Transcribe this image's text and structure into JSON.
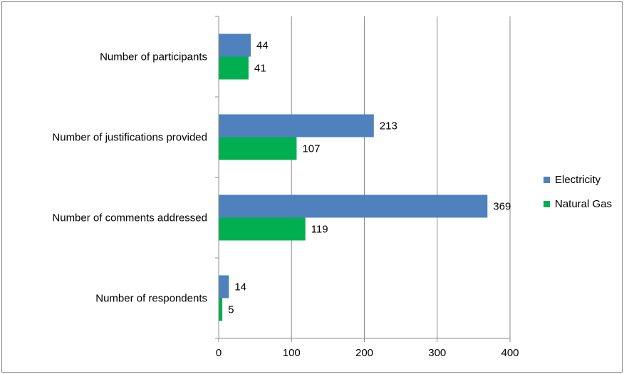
{
  "chart_data": {
    "type": "bar",
    "orientation": "horizontal",
    "categories": [
      "Number of participants",
      "Number of justifications provided",
      "Number of  comments addressed",
      "Number of  respondents"
    ],
    "series": [
      {
        "name": "Electricity",
        "values": [
          44,
          213,
          369,
          14
        ],
        "color": "#4f81bd"
      },
      {
        "name": "Natural Gas",
        "values": [
          41,
          107,
          119,
          5
        ],
        "color": "#00b050"
      }
    ],
    "xlim": [
      0,
      400
    ],
    "x_ticks": [
      "0",
      "100",
      "200",
      "300",
      "400"
    ],
    "x_tick_values": [
      0,
      100,
      200,
      300,
      400
    ],
    "grid": "vertical",
    "legend": "right",
    "data_labels": true,
    "title": "",
    "xlabel": "",
    "ylabel": ""
  }
}
